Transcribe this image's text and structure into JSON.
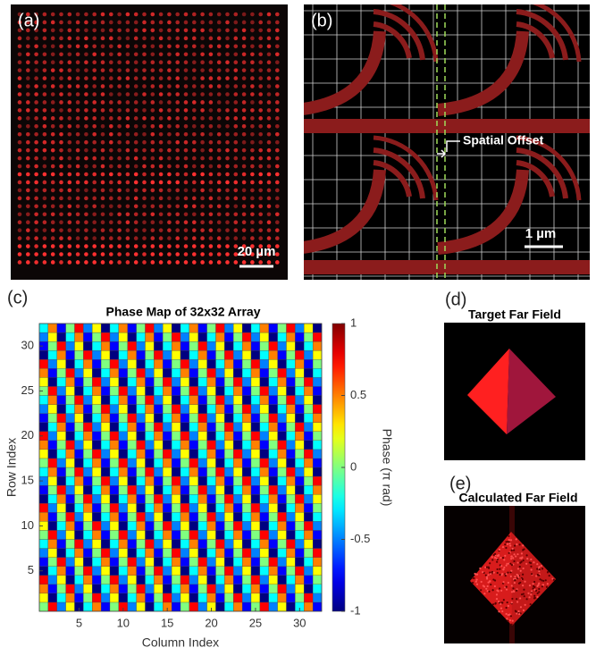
{
  "panels": {
    "a": {
      "label": "(a)",
      "scale_bar": "20 µm"
    },
    "b": {
      "label": "(b)",
      "annotation": "Spatial Offset",
      "scale_bar": "1 µm"
    },
    "c": {
      "label": "(c)"
    },
    "d": {
      "label": "(d)",
      "title": "Target Far Field"
    },
    "e": {
      "label": "(e)",
      "title": "Calculated Far Field"
    }
  },
  "chart_data": {
    "type": "heatmap",
    "title": "Phase Map of 32x32 Array",
    "x_label": "Column Index",
    "y_label": "Row Index",
    "colorbar_label": "Phase (π rad)",
    "colormap": "jet",
    "xlim": [
      0.5,
      32.5
    ],
    "ylim": [
      0.5,
      32.5
    ],
    "xticks": [
      5,
      10,
      15,
      20,
      25,
      30
    ],
    "yticks": [
      5,
      10,
      15,
      20,
      25,
      30
    ],
    "clim": [
      -1,
      1
    ],
    "cticks": [
      -1,
      -0.5,
      0,
      0.5,
      1
    ],
    "x": [
      1,
      2,
      3,
      4,
      5,
      6,
      7,
      8,
      9,
      10,
      11,
      12,
      13,
      14,
      15,
      16,
      17,
      18,
      19,
      20,
      21,
      22,
      23,
      24,
      25,
      26,
      27,
      28,
      29,
      30,
      31,
      32
    ],
    "y": [
      1,
      2,
      3,
      4,
      5,
      6,
      7,
      8,
      9,
      10,
      11,
      12,
      13,
      14,
      15,
      16,
      17,
      18,
      19,
      20,
      21,
      22,
      23,
      24,
      25,
      26,
      27,
      28,
      29,
      30,
      31,
      32
    ],
    "z": [
      [
        0,
        0.75,
        -0.5,
        0.25,
        -1,
        -0.25,
        0.5,
        -0.75,
        0,
        0.75,
        -0.5,
        0.25,
        -1,
        -0.25,
        0.5,
        -0.75,
        0,
        0.75,
        -0.5,
        0.25,
        -1,
        -0.25,
        0.5,
        -0.75,
        0,
        0.75,
        -0.5,
        0.25,
        -1,
        -0.25,
        0.5,
        -0.75
      ],
      [
        0.25,
        -1,
        -0.25,
        0.5,
        -0.75,
        0,
        0.75,
        -0.5,
        0.25,
        -1,
        -0.25,
        0.5,
        -0.75,
        0,
        0.75,
        -0.5,
        0.25,
        -1,
        -0.25,
        0.5,
        -0.75,
        0,
        0.75,
        -0.5,
        0.25,
        -1,
        -0.25,
        0.5,
        -0.75,
        0,
        0.75,
        -0.5
      ],
      [
        0.5,
        -0.75,
        0,
        0.75,
        -0.5,
        0.25,
        -1,
        -0.25,
        0.5,
        -0.75,
        0,
        0.75,
        -0.5,
        0.25,
        -1,
        -0.25,
        0.5,
        -0.75,
        0,
        0.75,
        -0.5,
        0.25,
        -1,
        -0.25,
        0.5,
        -0.75,
        0,
        0.75,
        -0.5,
        0.25,
        -1,
        -0.25
      ],
      [
        0.75,
        -0.5,
        0.25,
        -1,
        -0.25,
        0.5,
        -0.75,
        0,
        0.75,
        -0.5,
        0.25,
        -1,
        -0.25,
        0.5,
        -0.75,
        0,
        0.75,
        -0.5,
        0.25,
        -1,
        -0.25,
        0.5,
        -0.75,
        0,
        0.75,
        -0.5,
        0.25,
        -1,
        -0.25,
        0.5,
        -0.75,
        0
      ],
      [
        -1,
        -0.25,
        0.5,
        -0.75,
        0,
        0.75,
        -0.5,
        0.25,
        -1,
        -0.25,
        0.5,
        -0.75,
        0,
        0.75,
        -0.5,
        0.25,
        -1,
        -0.25,
        0.5,
        -0.75,
        0,
        0.75,
        -0.5,
        0.25,
        -1,
        -0.25,
        0.5,
        -0.75,
        0,
        0.75,
        -0.5,
        0.25
      ],
      [
        -0.75,
        0,
        0.75,
        -0.5,
        0.25,
        -1,
        -0.25,
        0.5,
        -0.75,
        0,
        0.75,
        -0.5,
        0.25,
        -1,
        -0.25,
        0.5,
        -0.75,
        0,
        0.75,
        -0.5,
        0.25,
        -1,
        -0.25,
        0.5,
        -0.75,
        0,
        0.75,
        -0.5,
        0.25,
        -1,
        -0.25,
        0.5
      ],
      [
        -0.5,
        0.25,
        -1,
        -0.25,
        0.5,
        -0.75,
        0,
        0.75,
        -0.5,
        0.25,
        -1,
        -0.25,
        0.5,
        -0.75,
        0,
        0.75,
        -0.5,
        0.25,
        -1,
        -0.25,
        0.5,
        -0.75,
        0,
        0.75,
        -0.5,
        0.25,
        -1,
        -0.25,
        0.5,
        -0.75,
        0,
        0.75
      ],
      [
        -0.25,
        0.5,
        -0.75,
        0,
        0.75,
        -0.5,
        0.25,
        -1,
        -0.25,
        0.5,
        -0.75,
        0,
        0.75,
        -0.5,
        0.25,
        -1,
        -0.25,
        0.5,
        -0.75,
        0,
        0.75,
        -0.5,
        0.25,
        -1,
        -0.25,
        0.5,
        -0.75,
        0,
        0.75,
        -0.5,
        0.25,
        -1
      ],
      [
        0,
        0.75,
        -0.5,
        0.25,
        -1,
        -0.25,
        0.5,
        -0.75,
        0,
        0.75,
        -0.5,
        0.25,
        -1,
        -0.25,
        0.5,
        -0.75,
        0,
        0.75,
        -0.5,
        0.25,
        -1,
        -0.25,
        0.5,
        -0.75,
        0,
        0.75,
        -0.5,
        0.25,
        -1,
        -0.25,
        0.5,
        -0.75
      ],
      [
        0.25,
        -1,
        -0.25,
        0.5,
        -0.75,
        0,
        0.75,
        -0.5,
        0.25,
        -1,
        -0.25,
        0.5,
        -0.75,
        0,
        0.75,
        -0.5,
        0.25,
        -1,
        -0.25,
        0.5,
        -0.75,
        0,
        0.75,
        -0.5,
        0.25,
        -1,
        -0.25,
        0.5,
        -0.75,
        0,
        0.75,
        -0.5
      ],
      [
        0.5,
        -0.75,
        0,
        0.75,
        -0.5,
        0.25,
        -1,
        -0.25,
        0.5,
        -0.75,
        0,
        0.75,
        -0.5,
        0.25,
        -1,
        -0.25,
        0.5,
        -0.75,
        0,
        0.75,
        -0.5,
        0.25,
        -1,
        -0.25,
        0.5,
        -0.75,
        0,
        0.75,
        -0.5,
        0.25,
        -1,
        -0.25
      ],
      [
        0.75,
        -0.5,
        0.25,
        -1,
        -0.25,
        0.5,
        -0.75,
        0,
        0.75,
        -0.5,
        0.25,
        -1,
        -0.25,
        0.5,
        -0.75,
        0,
        0.75,
        -0.5,
        0.25,
        -1,
        -0.25,
        0.5,
        -0.75,
        0,
        0.75,
        -0.5,
        0.25,
        -1,
        -0.25,
        0.5,
        -0.75,
        0
      ],
      [
        -1,
        -0.25,
        0.5,
        -0.75,
        0,
        0.75,
        -0.5,
        0.25,
        -1,
        -0.25,
        0.5,
        -0.75,
        0,
        0.75,
        -0.5,
        0.25,
        -1,
        -0.25,
        0.5,
        -0.75,
        0,
        0.75,
        -0.5,
        0.25,
        -1,
        -0.25,
        0.5,
        -0.75,
        0,
        0.75,
        -0.5,
        0.25
      ],
      [
        -0.75,
        0,
        0.75,
        -0.5,
        0.25,
        -1,
        -0.25,
        0.5,
        -0.75,
        0,
        0.75,
        -0.5,
        0.25,
        -1,
        -0.25,
        0.5,
        -0.75,
        0,
        0.75,
        -0.5,
        0.25,
        -1,
        -0.25,
        0.5,
        -0.75,
        0,
        0.75,
        -0.5,
        0.25,
        -1,
        -0.25,
        0.5
      ],
      [
        -0.5,
        0.25,
        -1,
        -0.25,
        0.5,
        -0.75,
        0,
        0.75,
        -0.5,
        0.25,
        -1,
        -0.25,
        0.5,
        -0.75,
        0,
        0.75,
        -0.5,
        0.25,
        -1,
        -0.25,
        0.5,
        -0.75,
        0,
        0.75,
        -0.5,
        0.25,
        -1,
        -0.25,
        0.5,
        -0.75,
        0,
        0.75
      ],
      [
        -0.25,
        0.5,
        -0.75,
        0,
        0.75,
        -0.5,
        0.25,
        -1,
        -0.25,
        0.5,
        -0.75,
        0,
        0.75,
        -0.5,
        0.25,
        -1,
        -0.25,
        0.5,
        -0.75,
        0,
        0.75,
        -0.5,
        0.25,
        -1,
        -0.25,
        0.5,
        -0.75,
        0,
        0.75,
        -0.5,
        0.25,
        -1
      ],
      [
        0,
        0.75,
        -0.5,
        0.25,
        -1,
        -0.25,
        0.5,
        -0.75,
        0,
        0.75,
        -0.5,
        0.25,
        -1,
        -0.25,
        0.5,
        -0.75,
        0,
        0.75,
        -0.5,
        0.25,
        -1,
        -0.25,
        0.5,
        -0.75,
        0,
        0.75,
        -0.5,
        0.25,
        -1,
        -0.25,
        0.5,
        -0.75
      ],
      [
        0.25,
        -1,
        -0.25,
        0.5,
        -0.75,
        0,
        0.75,
        -0.5,
        0.25,
        -1,
        -0.25,
        0.5,
        -0.75,
        0,
        0.75,
        -0.5,
        0.25,
        -1,
        -0.25,
        0.5,
        -0.75,
        0,
        0.75,
        -0.5,
        0.25,
        -1,
        -0.25,
        0.5,
        -0.75,
        0,
        0.75,
        -0.5
      ],
      [
        0.5,
        -0.75,
        0,
        0.75,
        -0.5,
        0.25,
        -1,
        -0.25,
        0.5,
        -0.75,
        0,
        0.75,
        -0.5,
        0.25,
        -1,
        -0.25,
        0.5,
        -0.75,
        0,
        0.75,
        -0.5,
        0.25,
        -1,
        -0.25,
        0.5,
        -0.75,
        0,
        0.75,
        -0.5,
        0.25,
        -1,
        -0.25
      ],
      [
        0.75,
        -0.5,
        0.25,
        -1,
        -0.25,
        0.5,
        -0.75,
        0,
        0.75,
        -0.5,
        0.25,
        -1,
        -0.25,
        0.5,
        -0.75,
        0,
        0.75,
        -0.5,
        0.25,
        -1,
        -0.25,
        0.5,
        -0.75,
        0,
        0.75,
        -0.5,
        0.25,
        -1,
        -0.25,
        0.5,
        -0.75,
        0
      ],
      [
        -1,
        -0.25,
        0.5,
        -0.75,
        0,
        0.75,
        -0.5,
        0.25,
        -1,
        -0.25,
        0.5,
        -0.75,
        0,
        0.75,
        -0.5,
        0.25,
        -1,
        -0.25,
        0.5,
        -0.75,
        0,
        0.75,
        -0.5,
        0.25,
        -1,
        -0.25,
        0.5,
        -0.75,
        0,
        0.75,
        -0.5,
        0.25
      ],
      [
        -0.75,
        0,
        0.75,
        -0.5,
        0.25,
        -1,
        -0.25,
        0.5,
        -0.75,
        0,
        0.75,
        -0.5,
        0.25,
        -1,
        -0.25,
        0.5,
        -0.75,
        0,
        0.75,
        -0.5,
        0.25,
        -1,
        -0.25,
        0.5,
        -0.75,
        0,
        0.75,
        -0.5,
        0.25,
        -1,
        -0.25,
        0.5
      ],
      [
        -0.5,
        0.25,
        -1,
        -0.25,
        0.5,
        -0.75,
        0,
        0.75,
        -0.5,
        0.25,
        -1,
        -0.25,
        0.5,
        -0.75,
        0,
        0.75,
        -0.5,
        0.25,
        -1,
        -0.25,
        0.5,
        -0.75,
        0,
        0.75,
        -0.5,
        0.25,
        -1,
        -0.25,
        0.5,
        -0.75,
        0,
        0.75
      ],
      [
        -0.25,
        0.5,
        -0.75,
        0,
        0.75,
        -0.5,
        0.25,
        -1,
        -0.25,
        0.5,
        -0.75,
        0,
        0.75,
        -0.5,
        0.25,
        -1,
        -0.25,
        0.5,
        -0.75,
        0,
        0.75,
        -0.5,
        0.25,
        -1,
        -0.25,
        0.5,
        -0.75,
        0,
        0.75,
        -0.5,
        0.25,
        -1
      ],
      [
        0,
        0.75,
        -0.5,
        0.25,
        -1,
        -0.25,
        0.5,
        -0.75,
        0,
        0.75,
        -0.5,
        0.25,
        -1,
        -0.25,
        0.5,
        -0.75,
        0,
        0.75,
        -0.5,
        0.25,
        -1,
        -0.25,
        0.5,
        -0.75,
        0,
        0.75,
        -0.5,
        0.25,
        -1,
        -0.25,
        0.5,
        -0.75
      ],
      [
        0.25,
        -1,
        -0.25,
        0.5,
        -0.75,
        0,
        0.75,
        -0.5,
        0.25,
        -1,
        -0.25,
        0.5,
        -0.75,
        0,
        0.75,
        -0.5,
        0.25,
        -1,
        -0.25,
        0.5,
        -0.75,
        0,
        0.75,
        -0.5,
        0.25,
        -1,
        -0.25,
        0.5,
        -0.75,
        0,
        0.75,
        -0.5
      ],
      [
        0.5,
        -0.75,
        0,
        0.75,
        -0.5,
        0.25,
        -1,
        -0.25,
        0.5,
        -0.75,
        0,
        0.75,
        -0.5,
        0.25,
        -1,
        -0.25,
        0.5,
        -0.75,
        0,
        0.75,
        -0.5,
        0.25,
        -1,
        -0.25,
        0.5,
        -0.75,
        0,
        0.75,
        -0.5,
        0.25,
        -1,
        -0.25
      ],
      [
        0.75,
        -0.5,
        0.25,
        -1,
        -0.25,
        0.5,
        -0.75,
        0,
        0.75,
        -0.5,
        0.25,
        -1,
        -0.25,
        0.5,
        -0.75,
        0,
        0.75,
        -0.5,
        0.25,
        -1,
        -0.25,
        0.5,
        -0.75,
        0,
        0.75,
        -0.5,
        0.25,
        -1,
        -0.25,
        0.5,
        -0.75,
        0
      ],
      [
        -1,
        -0.25,
        0.5,
        -0.75,
        0,
        0.75,
        -0.5,
        0.25,
        -1,
        -0.25,
        0.5,
        -0.75,
        0,
        0.75,
        -0.5,
        0.25,
        -1,
        -0.25,
        0.5,
        -0.75,
        0,
        0.75,
        -0.5,
        0.25,
        -1,
        -0.25,
        0.5,
        -0.75,
        0,
        0.75,
        -0.5,
        0.25
      ],
      [
        -0.75,
        0,
        0.75,
        -0.5,
        0.25,
        -1,
        -0.25,
        0.5,
        -0.75,
        0,
        0.75,
        -0.5,
        0.25,
        -1,
        -0.25,
        0.5,
        -0.75,
        0,
        0.75,
        -0.5,
        0.25,
        -1,
        -0.25,
        0.5,
        -0.75,
        0,
        0.75,
        -0.5,
        0.25,
        -1,
        -0.25,
        0.5
      ],
      [
        -0.5,
        0.25,
        -1,
        -0.25,
        0.5,
        -0.75,
        0,
        0.75,
        -0.5,
        0.25,
        -1,
        -0.25,
        0.5,
        -0.75,
        0,
        0.75,
        -0.5,
        0.25,
        -1,
        -0.25,
        0.5,
        -0.75,
        0,
        0.75,
        -0.5,
        0.25,
        -1,
        -0.25,
        0.5,
        -0.75,
        0,
        0.75
      ],
      [
        -0.25,
        0.5,
        -0.75,
        0,
        0.75,
        -0.5,
        0.25,
        -1,
        -0.25,
        0.5,
        -0.75,
        0,
        0.75,
        -0.5,
        0.25,
        -1,
        -0.25,
        0.5,
        -0.75,
        0,
        0.75,
        -0.5,
        0.25,
        -1,
        -0.25,
        0.5,
        -0.75,
        0,
        0.75,
        -0.5,
        0.25,
        -1
      ]
    ]
  }
}
